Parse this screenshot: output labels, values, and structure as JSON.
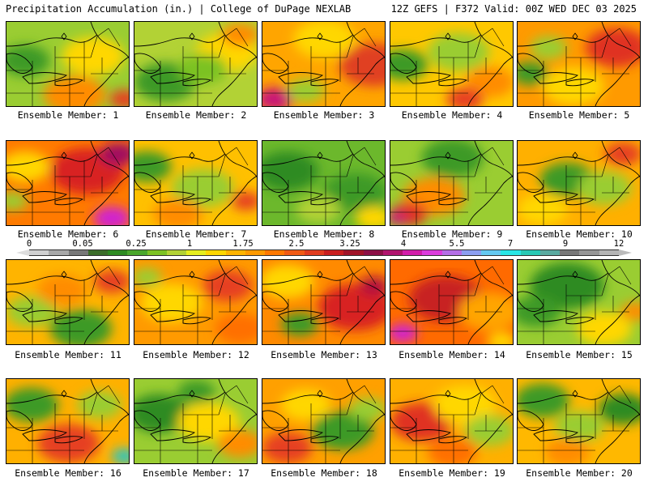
{
  "header": {
    "title_left": "Precipitation Accumulation (in.) | College of DuPage NEXLAB",
    "title_right": "12Z GEFS | F372 Valid: 00Z WED DEC 03 2025"
  },
  "members": [
    {
      "label": "Ensemble Member: 1",
      "base": "#9acd32",
      "blobs": [
        [
          "#3c9a28",
          0.15,
          0.45,
          0.2
        ],
        [
          "#ff8c00",
          0.55,
          0.85,
          0.25
        ],
        [
          "#ffd700",
          0.7,
          0.4,
          0.25
        ],
        [
          "#e64020",
          0.95,
          0.9,
          0.12
        ]
      ]
    },
    {
      "label": "Ensemble Member: 2",
      "base": "#b2d235",
      "blobs": [
        [
          "#3c9a28",
          0.25,
          0.7,
          0.25
        ],
        [
          "#ffd700",
          0.75,
          0.35,
          0.25
        ],
        [
          "#ff8c00",
          0.85,
          0.15,
          0.15
        ],
        [
          "#7cc224",
          0.55,
          0.55,
          0.2
        ]
      ]
    },
    {
      "label": "Ensemble Member: 3",
      "base": "#ffa500",
      "blobs": [
        [
          "#e04020",
          0.9,
          0.5,
          0.28
        ],
        [
          "#c81478",
          0.1,
          0.9,
          0.15
        ],
        [
          "#ffd700",
          0.5,
          0.2,
          0.25
        ],
        [
          "#9acd32",
          0.35,
          0.8,
          0.15
        ]
      ]
    },
    {
      "label": "Ensemble Member: 4",
      "base": "#ffc800",
      "blobs": [
        [
          "#3c9a28",
          0.1,
          0.5,
          0.2
        ],
        [
          "#9acd32",
          0.55,
          0.35,
          0.25
        ],
        [
          "#ff8c00",
          0.8,
          0.7,
          0.2
        ],
        [
          "#e64020",
          0.6,
          0.9,
          0.15
        ]
      ]
    },
    {
      "label": "Ensemble Member: 5",
      "base": "#ff9a00",
      "blobs": [
        [
          "#e03020",
          0.8,
          0.3,
          0.25
        ],
        [
          "#3c9a28",
          0.1,
          0.6,
          0.15
        ],
        [
          "#ffd700",
          0.45,
          0.75,
          0.25
        ],
        [
          "#9acd32",
          0.25,
          0.3,
          0.15
        ]
      ]
    },
    {
      "label": "Ensemble Member: 6",
      "base": "#ff7a00",
      "blobs": [
        [
          "#d82020",
          0.65,
          0.35,
          0.3
        ],
        [
          "#a01060",
          0.9,
          0.15,
          0.15
        ],
        [
          "#d020d0",
          0.85,
          0.9,
          0.15
        ],
        [
          "#ffd700",
          0.15,
          0.3,
          0.2
        ],
        [
          "#9acd32",
          0.05,
          0.7,
          0.12
        ]
      ]
    },
    {
      "label": "Ensemble Member: 7",
      "base": "#ffc000",
      "blobs": [
        [
          "#3c9a28",
          0.1,
          0.3,
          0.2
        ],
        [
          "#9acd32",
          0.55,
          0.55,
          0.25
        ],
        [
          "#ff8c00",
          0.35,
          0.85,
          0.2
        ],
        [
          "#e64020",
          0.9,
          0.7,
          0.12
        ]
      ]
    },
    {
      "label": "Ensemble Member: 8",
      "base": "#6cb82c",
      "blobs": [
        [
          "#2e8b22",
          0.2,
          0.35,
          0.25
        ],
        [
          "#3c9a28",
          0.75,
          0.6,
          0.25
        ],
        [
          "#ffd700",
          0.9,
          0.9,
          0.15
        ],
        [
          "#b2d235",
          0.45,
          0.8,
          0.18
        ]
      ]
    },
    {
      "label": "Ensemble Member: 9",
      "base": "#9acd32",
      "blobs": [
        [
          "#3c9a28",
          0.5,
          0.2,
          0.25
        ],
        [
          "#ff8c00",
          0.35,
          0.65,
          0.25
        ],
        [
          "#e03020",
          0.15,
          0.85,
          0.15
        ],
        [
          "#c81478",
          0.05,
          0.9,
          0.08
        ]
      ]
    },
    {
      "label": "Ensemble Member: 10",
      "base": "#ffb000",
      "blobs": [
        [
          "#3c9a28",
          0.4,
          0.45,
          0.22
        ],
        [
          "#9acd32",
          0.7,
          0.55,
          0.22
        ],
        [
          "#e64020",
          0.85,
          0.15,
          0.15
        ],
        [
          "#ffd700",
          0.2,
          0.8,
          0.2
        ]
      ]
    },
    {
      "label": "Ensemble Member: 11",
      "base": "#ffb400",
      "blobs": [
        [
          "#3c9a28",
          0.6,
          0.8,
          0.25
        ],
        [
          "#9acd32",
          0.2,
          0.6,
          0.2
        ],
        [
          "#e64020",
          0.85,
          0.25,
          0.15
        ],
        [
          "#ff8c00",
          0.45,
          0.35,
          0.2
        ]
      ]
    },
    {
      "label": "Ensemble Member: 12",
      "base": "#ff9a00",
      "blobs": [
        [
          "#ffd700",
          0.3,
          0.5,
          0.25
        ],
        [
          "#e64020",
          0.75,
          0.3,
          0.2
        ],
        [
          "#9acd32",
          0.1,
          0.2,
          0.12
        ],
        [
          "#ff7000",
          0.85,
          0.8,
          0.2
        ]
      ]
    },
    {
      "label": "Ensemble Member: 13",
      "base": "#ff8a00",
      "blobs": [
        [
          "#d82020",
          0.75,
          0.55,
          0.3
        ],
        [
          "#ffd700",
          0.2,
          0.25,
          0.22
        ],
        [
          "#3c9a28",
          0.3,
          0.75,
          0.15
        ],
        [
          "#b01040",
          0.9,
          0.3,
          0.12
        ]
      ]
    },
    {
      "label": "Ensemble Member: 14",
      "base": "#ff6a00",
      "blobs": [
        [
          "#c82020",
          0.45,
          0.45,
          0.3
        ],
        [
          "#d020d0",
          0.1,
          0.85,
          0.12
        ],
        [
          "#ffa500",
          0.8,
          0.6,
          0.25
        ],
        [
          "#ffd700",
          0.9,
          0.95,
          0.12
        ]
      ]
    },
    {
      "label": "Ensemble Member: 15",
      "base": "#9acd32",
      "blobs": [
        [
          "#2e8b22",
          0.4,
          0.3,
          0.3
        ],
        [
          "#ffd700",
          0.7,
          0.8,
          0.22
        ],
        [
          "#ff8c00",
          0.95,
          0.6,
          0.12
        ],
        [
          "#3c9a28",
          0.15,
          0.6,
          0.2
        ]
      ]
    },
    {
      "label": "Ensemble Member: 16",
      "base": "#ffb000",
      "blobs": [
        [
          "#3c9a28",
          0.2,
          0.3,
          0.22
        ],
        [
          "#e64020",
          0.5,
          0.75,
          0.25
        ],
        [
          "#20c8c8",
          0.95,
          0.9,
          0.1
        ],
        [
          "#9acd32",
          0.75,
          0.3,
          0.18
        ]
      ]
    },
    {
      "label": "Ensemble Member: 17",
      "base": "#9acd32",
      "blobs": [
        [
          "#2e8b22",
          0.2,
          0.4,
          0.25
        ],
        [
          "#ffd700",
          0.6,
          0.5,
          0.25
        ],
        [
          "#ff8c00",
          0.85,
          0.75,
          0.18
        ],
        [
          "#3c9a28",
          0.5,
          0.15,
          0.15
        ]
      ]
    },
    {
      "label": "Ensemble Member: 18",
      "base": "#ffa000",
      "blobs": [
        [
          "#3c9a28",
          0.65,
          0.6,
          0.25
        ],
        [
          "#e64020",
          0.2,
          0.8,
          0.2
        ],
        [
          "#ffd700",
          0.35,
          0.3,
          0.2
        ],
        [
          "#9acd32",
          0.85,
          0.35,
          0.15
        ]
      ]
    },
    {
      "label": "Ensemble Member: 19",
      "base": "#ffb000",
      "blobs": [
        [
          "#e03020",
          0.25,
          0.5,
          0.25
        ],
        [
          "#ffd700",
          0.6,
          0.3,
          0.25
        ],
        [
          "#9acd32",
          0.8,
          0.6,
          0.2
        ],
        [
          "#ff7000",
          0.5,
          0.85,
          0.2
        ]
      ]
    },
    {
      "label": "Ensemble Member: 20",
      "base": "#ffb800",
      "blobs": [
        [
          "#3c9a28",
          0.2,
          0.25,
          0.22
        ],
        [
          "#2e8b22",
          0.85,
          0.35,
          0.2
        ],
        [
          "#9acd32",
          0.5,
          0.55,
          0.2
        ],
        [
          "#ff8c00",
          0.4,
          0.85,
          0.18
        ]
      ]
    }
  ],
  "colorbar": {
    "ticks": [
      "0",
      "0.05",
      "0.25",
      "1",
      "1.75",
      "2.5",
      "3.25",
      "4",
      "5.5",
      "7",
      "9",
      "12"
    ],
    "colors": [
      "#d0d0d0",
      "#a8a8a8",
      "#787878",
      "#3c6e2a",
      "#2e8b22",
      "#4aa72c",
      "#7cc224",
      "#b2d235",
      "#e6ee1e",
      "#ffd700",
      "#ffb400",
      "#ff9a00",
      "#ff7800",
      "#f05a14",
      "#e03c1e",
      "#c81e1e",
      "#a01428",
      "#8c1046",
      "#b0146e",
      "#d21eaa",
      "#dc3cdc",
      "#b46ee6",
      "#8c9ef0",
      "#64c8f0",
      "#28e6e6",
      "#28c8b4",
      "#5aaaa0",
      "#787878",
      "#969696",
      "#b4b4b4"
    ]
  }
}
